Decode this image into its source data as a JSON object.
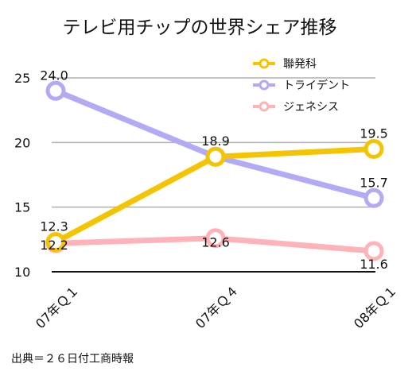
{
  "chart_data": {
    "type": "line",
    "title": "テレビ用チップの世界シェア推移",
    "categories": [
      "07年Ｑ１",
      "07年Ｑ４",
      "08年Ｑ１"
    ],
    "ylim": [
      10,
      25
    ],
    "yticks": [
      10,
      15,
      20,
      25
    ],
    "grid": true,
    "legend_position": "top-right",
    "series": [
      {
        "name": "聯発科",
        "values": [
          12.3,
          18.9,
          19.5
        ],
        "labels": [
          "12.3",
          "18.9",
          "19.5"
        ],
        "color": "#f5c400"
      },
      {
        "name": "トライデント",
        "values": [
          24.0,
          18.9,
          15.7
        ],
        "labels": [
          "24.0",
          "",
          "15.7"
        ],
        "color": "#b3aaf5"
      },
      {
        "name": "ジェネシス",
        "values": [
          12.2,
          12.6,
          11.6
        ],
        "labels": [
          "12.2",
          "12.6",
          "11.6"
        ],
        "color": "#ffb3b8"
      }
    ],
    "source": "出典＝２６日付工商時報"
  }
}
